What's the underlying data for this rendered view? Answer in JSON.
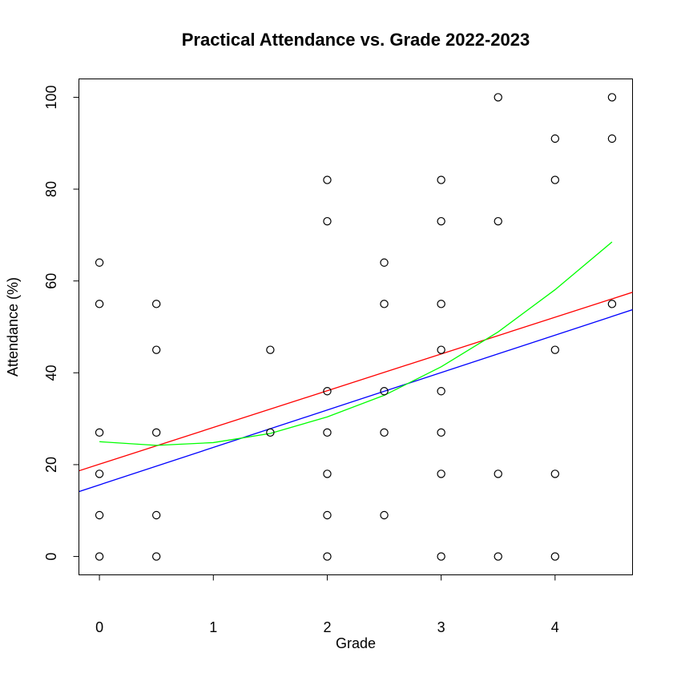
{
  "chart_data": {
    "type": "scatter",
    "title": "Practical Attendance vs. Grade 2022-2023",
    "xlabel": "Grade",
    "ylabel": "Attendance (%)",
    "xlim": [
      -0.18,
      4.68
    ],
    "ylim": [
      -4,
      104
    ],
    "xticks": [
      0,
      1,
      2,
      3,
      4
    ],
    "yticks": [
      0,
      20,
      40,
      60,
      80,
      100
    ],
    "grid": false,
    "points": [
      [
        0,
        64
      ],
      [
        0,
        55
      ],
      [
        0,
        27
      ],
      [
        0,
        18
      ],
      [
        0,
        9
      ],
      [
        0,
        0
      ],
      [
        0.5,
        55
      ],
      [
        0.5,
        45
      ],
      [
        0.5,
        27
      ],
      [
        0.5,
        9
      ],
      [
        0.5,
        0
      ],
      [
        1.5,
        45
      ],
      [
        1.5,
        27
      ],
      [
        2,
        82
      ],
      [
        2,
        73
      ],
      [
        2,
        36
      ],
      [
        2,
        27
      ],
      [
        2,
        18
      ],
      [
        2,
        9
      ],
      [
        2,
        0
      ],
      [
        2.5,
        64
      ],
      [
        2.5,
        55
      ],
      [
        2.5,
        36
      ],
      [
        2.5,
        27
      ],
      [
        2.5,
        9
      ],
      [
        3,
        82
      ],
      [
        3,
        73
      ],
      [
        3,
        55
      ],
      [
        3,
        45
      ],
      [
        3,
        36
      ],
      [
        3,
        27
      ],
      [
        3,
        18
      ],
      [
        3,
        0
      ],
      [
        3.5,
        100
      ],
      [
        3.5,
        73
      ],
      [
        3.5,
        18
      ],
      [
        3.5,
        0
      ],
      [
        4,
        91
      ],
      [
        4,
        82
      ],
      [
        4,
        45
      ],
      [
        4,
        18
      ],
      [
        4,
        0
      ],
      [
        4.5,
        100
      ],
      [
        4.5,
        91
      ],
      [
        4.5,
        55
      ]
    ],
    "lines": [
      {
        "color": "#ff0000",
        "kind": "linear",
        "intercept": 20.1,
        "slope": 8.0
      },
      {
        "color": "#0000ff",
        "kind": "linear",
        "intercept": 15.6,
        "slope": 8.15
      },
      {
        "color": "#00ff00",
        "kind": "curve",
        "x": [
          0,
          0.5,
          1,
          1.5,
          2,
          2.5,
          3,
          3.5,
          4,
          4.5
        ],
        "y": [
          25,
          24.2,
          24.8,
          26.8,
          30.4,
          35.1,
          41.3,
          48.9,
          58.1,
          68.5
        ]
      }
    ]
  }
}
